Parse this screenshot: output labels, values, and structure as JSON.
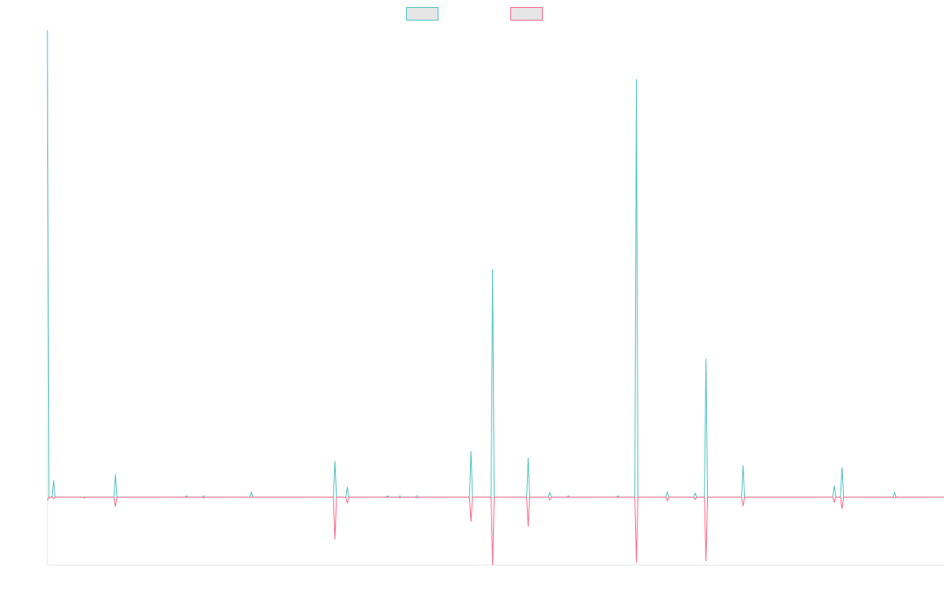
{
  "chart_data": {
    "type": "line",
    "title": "",
    "xlabel": "",
    "ylabel": "",
    "grid": false,
    "legend_position": "top-center",
    "ylim": [
      -100,
      690
    ],
    "series": [
      {
        "color": "#4bc0c0",
        "fill": "#e6e6e6",
        "values": [
          687,
          0,
          0,
          0,
          25,
          0,
          0,
          0,
          0,
          0,
          0,
          0,
          0,
          0,
          0,
          0,
          0,
          0,
          0,
          0,
          0,
          0,
          0,
          0,
          0,
          0,
          0,
          0,
          0,
          0,
          0,
          0,
          0,
          0,
          0,
          0,
          0,
          0,
          0,
          0,
          0,
          0,
          0,
          0,
          34,
          0,
          0,
          0,
          0,
          0,
          0,
          0,
          0,
          0,
          0,
          0,
          0,
          0,
          0,
          0,
          0,
          0,
          0,
          0,
          0,
          0,
          0,
          0,
          0,
          0,
          0,
          0,
          0,
          0,
          0,
          0,
          0,
          0,
          0,
          0,
          0,
          0,
          0,
          0,
          0,
          0,
          0,
          0,
          0,
          0,
          2,
          0,
          0,
          0,
          0,
          0,
          0,
          0,
          0,
          0,
          0,
          2,
          0,
          0,
          0,
          0,
          0,
          0,
          0,
          0,
          0,
          0,
          0,
          0,
          0,
          0,
          0,
          0,
          0,
          0,
          0,
          0,
          0,
          0,
          0,
          0,
          0,
          0,
          0,
          0,
          0,
          0,
          7,
          0,
          0,
          0,
          0,
          0,
          0,
          0,
          0,
          0,
          0,
          0,
          0,
          0,
          0,
          0,
          0,
          0,
          0,
          0,
          0,
          0,
          0,
          0,
          0,
          0,
          0,
          0,
          0,
          0,
          0,
          0,
          0,
          0,
          0,
          0,
          0,
          0,
          0,
          0,
          0,
          0,
          0,
          0,
          0,
          0,
          0,
          0,
          0,
          0,
          0,
          0,
          0,
          0,
          53,
          0,
          0,
          0,
          0,
          0,
          0,
          0,
          15,
          0,
          0,
          0,
          0,
          0,
          0,
          0,
          0,
          0,
          0,
          0,
          0,
          0,
          0,
          0,
          0,
          0,
          0,
          0,
          0,
          0,
          0,
          0,
          0,
          0,
          2,
          0,
          0,
          0,
          0,
          0,
          0,
          0,
          2,
          0,
          0,
          0,
          0,
          0,
          0,
          0,
          0,
          0,
          0,
          2,
          0,
          0,
          0,
          0,
          0,
          0,
          0,
          0,
          0,
          0,
          0,
          0,
          0,
          0,
          0,
          0,
          0,
          0,
          0,
          0,
          0,
          0,
          0,
          0,
          0,
          0,
          0,
          0,
          0,
          0,
          0,
          0,
          0,
          0,
          68,
          0,
          0,
          0,
          0,
          0,
          0,
          0,
          0,
          0,
          0,
          0,
          0,
          0,
          336,
          0,
          0,
          0,
          0,
          0,
          0,
          0,
          0,
          0,
          0,
          0,
          0,
          0,
          0,
          0,
          0,
          0,
          0,
          0,
          0,
          0,
          0,
          58,
          0,
          0,
          0,
          0,
          0,
          0,
          0,
          0,
          0,
          0,
          0,
          0,
          0,
          7,
          0,
          0,
          0,
          0,
          0,
          0,
          0,
          0,
          0,
          0,
          0,
          2,
          0,
          0,
          0,
          0,
          0,
          0,
          0,
          0,
          0,
          0,
          0,
          0,
          0,
          0,
          0,
          0,
          0,
          0,
          0,
          0,
          0,
          0,
          0,
          0,
          0,
          0,
          0,
          0,
          0,
          0,
          0,
          2,
          0,
          0,
          0,
          0,
          0,
          0,
          0,
          0,
          0,
          0,
          0,
          615,
          0,
          0,
          0,
          0,
          0,
          0,
          0,
          0,
          0,
          0,
          0,
          0,
          0,
          0,
          0,
          0,
          0,
          0,
          0,
          8,
          0,
          0,
          0,
          0,
          0,
          0,
          0,
          0,
          0,
          0,
          0,
          0,
          0,
          0,
          0,
          0,
          0,
          6,
          0,
          0,
          0,
          0,
          0,
          0,
          204,
          0,
          0,
          0,
          0,
          0,
          0,
          0,
          0,
          0,
          0,
          0,
          0,
          0,
          0,
          0,
          0,
          0,
          0,
          0,
          0,
          0,
          0,
          0,
          47,
          0,
          0,
          0,
          0,
          0,
          0,
          0,
          0,
          0,
          0,
          0,
          0,
          0,
          0,
          0,
          0,
          0,
          0,
          0,
          0,
          0,
          0,
          0,
          0,
          0,
          0,
          0,
          0,
          0,
          0,
          0,
          0,
          0,
          0,
          0,
          0,
          0,
          0,
          0,
          0,
          0,
          0,
          0,
          0,
          0,
          0,
          0,
          0,
          0,
          0,
          0,
          0,
          0,
          0,
          0,
          0,
          0,
          0,
          17,
          0,
          0,
          0,
          0,
          44,
          0,
          0,
          0,
          0,
          0,
          0,
          0,
          0,
          0,
          0,
          0,
          0,
          0,
          0,
          0,
          0,
          0,
          0,
          0,
          0,
          0,
          0,
          0,
          0,
          0,
          0,
          0,
          0,
          0,
          0,
          0,
          0,
          0,
          7,
          0,
          0,
          0,
          0,
          0,
          0,
          0,
          0,
          0,
          0,
          0,
          0,
          0,
          0,
          0,
          0,
          0,
          0,
          0,
          0,
          0,
          0,
          0,
          0,
          0,
          0,
          0,
          0,
          0,
          0,
          0,
          0
        ]
      },
      {
        "color": "#ff6384",
        "fill": "#e6e6e6",
        "values": [
          -5,
          0,
          0,
          0,
          -2,
          0,
          0,
          0,
          0,
          0,
          0,
          0,
          0,
          0,
          0,
          0,
          0,
          0,
          0,
          0,
          0,
          0,
          0,
          0,
          -1,
          0,
          0,
          0,
          0,
          0,
          0,
          0,
          0,
          0,
          0,
          0,
          0,
          0,
          0,
          0,
          0,
          0,
          0,
          0,
          -14,
          0,
          0,
          0,
          0,
          0,
          0,
          0,
          0,
          0,
          0,
          0,
          0,
          0,
          0,
          0,
          0,
          0,
          0,
          0,
          0,
          0,
          0,
          0,
          0,
          0,
          0,
          0,
          0,
          0,
          0,
          0,
          0,
          0,
          0,
          0,
          0,
          0,
          0,
          0,
          0,
          0,
          0,
          0,
          0,
          0,
          0,
          0,
          0,
          0,
          0,
          0,
          0,
          0,
          0,
          0,
          0,
          -1,
          0,
          0,
          0,
          0,
          0,
          0,
          0,
          0,
          0,
          0,
          0,
          0,
          0,
          0,
          0,
          0,
          0,
          0,
          0,
          0,
          0,
          0,
          0,
          0,
          0,
          0,
          0,
          0,
          0,
          0,
          0,
          0,
          0,
          0,
          0,
          0,
          0,
          0,
          0,
          0,
          0,
          0,
          0,
          0,
          0,
          0,
          0,
          0,
          0,
          0,
          0,
          0,
          0,
          0,
          0,
          0,
          0,
          0,
          0,
          0,
          0,
          0,
          0,
          0,
          0,
          0,
          0,
          0,
          0,
          0,
          0,
          0,
          0,
          0,
          0,
          0,
          0,
          0,
          0,
          0,
          0,
          0,
          0,
          0,
          -62,
          0,
          0,
          0,
          0,
          0,
          0,
          0,
          -9,
          0,
          0,
          0,
          0,
          0,
          0,
          0,
          0,
          0,
          0,
          0,
          0,
          0,
          0,
          0,
          0,
          0,
          0,
          0,
          0,
          0,
          0,
          0,
          0,
          0,
          0,
          0,
          0,
          0,
          0,
          0,
          0,
          0,
          -1,
          0,
          0,
          0,
          0,
          0,
          0,
          0,
          0,
          0,
          0,
          -1,
          0,
          0,
          0,
          0,
          0,
          0,
          0,
          0,
          0,
          0,
          0,
          0,
          0,
          0,
          0,
          0,
          0,
          0,
          0,
          0,
          0,
          0,
          0,
          0,
          0,
          0,
          0,
          0,
          0,
          0,
          0,
          0,
          0,
          0,
          -36,
          0,
          0,
          0,
          0,
          0,
          0,
          0,
          0,
          0,
          0,
          0,
          0,
          0,
          -100,
          0,
          0,
          0,
          0,
          0,
          0,
          0,
          0,
          0,
          0,
          0,
          0,
          0,
          0,
          0,
          0,
          0,
          0,
          0,
          0,
          0,
          0,
          -43,
          0,
          0,
          0,
          0,
          0,
          0,
          0,
          0,
          0,
          0,
          0,
          0,
          0,
          -4,
          0,
          0,
          0,
          0,
          0,
          0,
          0,
          0,
          0,
          0,
          0,
          0,
          0,
          0,
          0,
          0,
          0,
          0,
          0,
          0,
          0,
          0,
          0,
          0,
          0,
          0,
          0,
          0,
          0,
          0,
          0,
          0,
          0,
          0,
          0,
          0,
          0,
          0,
          0,
          0,
          0,
          0,
          0,
          0,
          0,
          0,
          0,
          0,
          0,
          0,
          0,
          0,
          0,
          0,
          0,
          -97,
          0,
          0,
          0,
          0,
          0,
          0,
          0,
          0,
          0,
          0,
          0,
          0,
          0,
          0,
          0,
          0,
          0,
          0,
          0,
          -5,
          0,
          0,
          0,
          0,
          0,
          0,
          0,
          0,
          0,
          0,
          0,
          0,
          0,
          0,
          0,
          0,
          0,
          -3,
          0,
          0,
          0,
          0,
          0,
          0,
          -94,
          0,
          0,
          0,
          0,
          0,
          0,
          0,
          0,
          0,
          0,
          0,
          0,
          0,
          0,
          0,
          0,
          0,
          0,
          0,
          0,
          0,
          0,
          0,
          -13,
          0,
          0,
          0,
          0,
          0,
          0,
          0,
          0,
          0,
          0,
          0,
          0,
          0,
          0,
          0,
          0,
          0,
          0,
          0,
          0,
          0,
          0,
          0,
          0,
          0,
          0,
          0,
          0,
          0,
          0,
          0,
          0,
          0,
          0,
          0,
          0,
          0,
          0,
          0,
          0,
          0,
          0,
          0,
          0,
          0,
          0,
          0,
          0,
          0,
          0,
          0,
          0,
          0,
          0,
          0,
          0,
          0,
          0,
          -7,
          0,
          0,
          0,
          0,
          -17,
          0,
          0,
          0,
          0,
          0,
          0,
          0,
          0,
          0,
          0,
          0,
          0,
          0,
          0,
          0,
          0,
          0,
          0,
          0,
          0,
          0,
          0,
          0,
          0,
          0,
          0,
          0,
          0,
          0,
          0,
          0,
          0,
          0,
          -1,
          0,
          0,
          0,
          0,
          0,
          0,
          0,
          0,
          0,
          0,
          0,
          0,
          0,
          0,
          0,
          0,
          0,
          0,
          0,
          0,
          0,
          0,
          0,
          0,
          0,
          0,
          0,
          0,
          0,
          0,
          0,
          0
        ]
      }
    ]
  }
}
